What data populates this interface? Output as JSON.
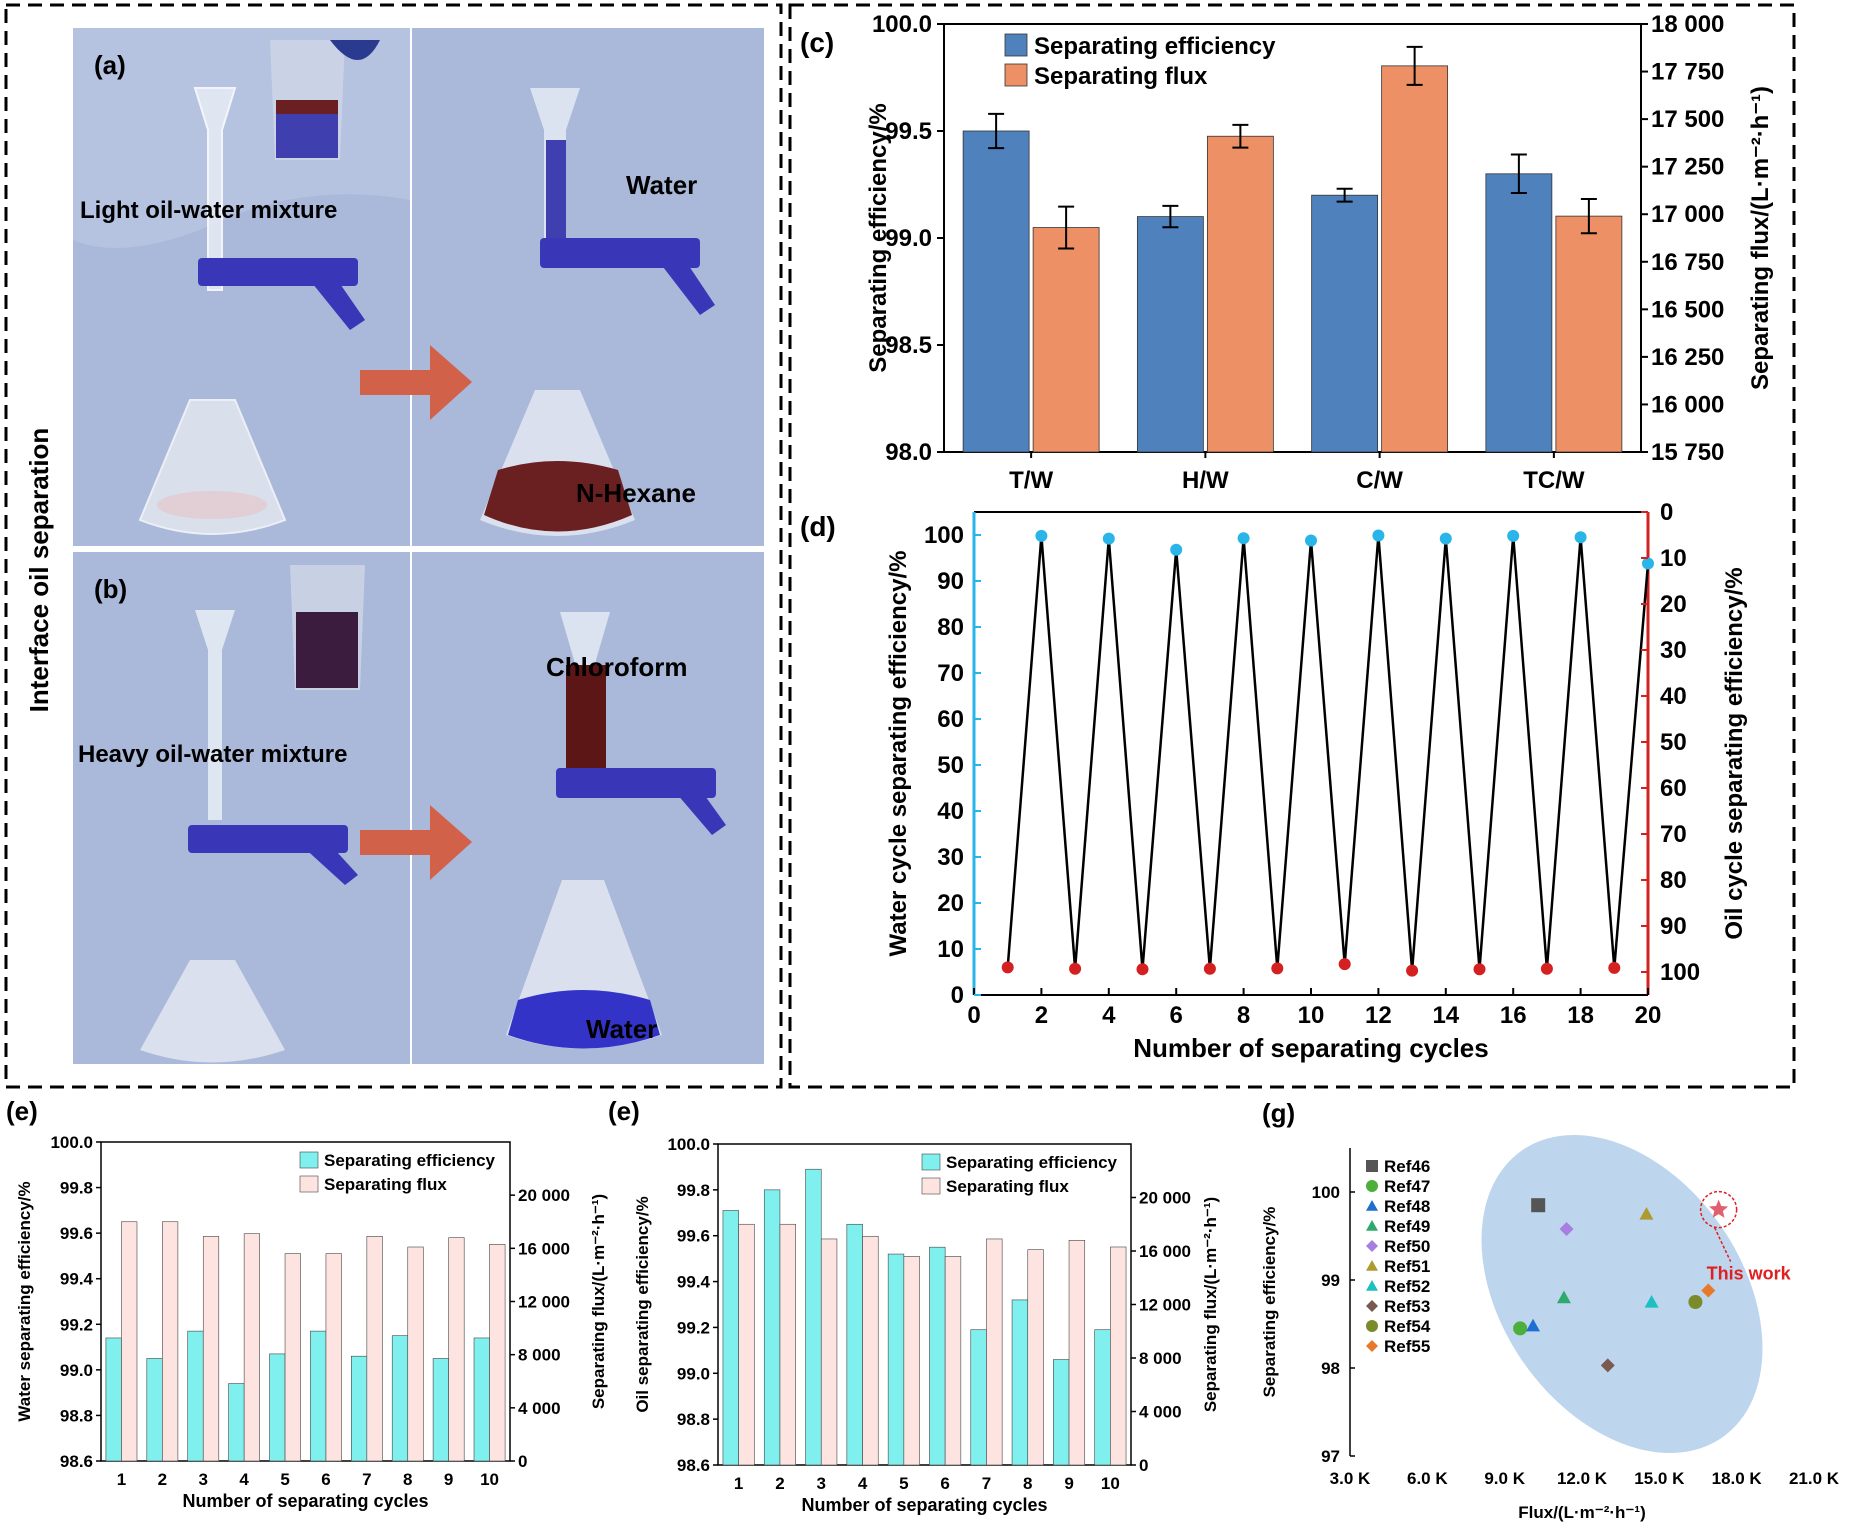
{
  "photos": {
    "side_label": "Interface oil separation",
    "panel_a": {
      "label": "(a)",
      "left_caption": "Light oil-water mixture",
      "right_top": "Water",
      "right_bottom": "N-Hexane"
    },
    "panel_b": {
      "label": "(b)",
      "left_caption": "Heavy oil-water mixture",
      "right_top": "Chloroform",
      "right_bottom": "Water"
    },
    "colors": {
      "background": "#a9b7d8",
      "arrow": "#d2614a",
      "clamp": "#3a36b8",
      "dye_blue": "#3f3fb0",
      "dye_red": "#6a2020"
    }
  },
  "chart_data": [
    {
      "id": "c",
      "panel_label": "(c)",
      "type": "bar",
      "categories": [
        "T/W",
        "H/W",
        "C/W",
        "TC/W"
      ],
      "series": [
        {
          "name": "Separating efficiency",
          "axis": "left",
          "values": [
            99.5,
            99.1,
            99.2,
            99.3
          ],
          "errors": [
            0.08,
            0.05,
            0.03,
            0.09
          ],
          "color": "#4f81bd"
        },
        {
          "name": "Separating flux",
          "axis": "right",
          "values": [
            16930,
            17410,
            17780,
            16990
          ],
          "errors": [
            110,
            60,
            100,
            90
          ],
          "color": "#ed9066"
        }
      ],
      "ylabel": "Separating efficiency/%",
      "y2label": "Separating flux/(L·m⁻²·h⁻¹)",
      "ylim": [
        98.0,
        100.0
      ],
      "y2lim": [
        15750,
        18000
      ],
      "yticks": [
        "98.0",
        "98.5",
        "99.0",
        "99.5",
        "100.0"
      ],
      "y2ticks": [
        "15 750",
        "16 000",
        "16 250",
        "16 500",
        "16 750",
        "17 000",
        "17 250",
        "17 500",
        "17 750",
        "18 000"
      ],
      "legend": "top-left"
    },
    {
      "id": "d",
      "panel_label": "(d)",
      "type": "line",
      "x": [
        1,
        2,
        3,
        4,
        5,
        6,
        7,
        8,
        9,
        10,
        11,
        12,
        13,
        14,
        15,
        16,
        17,
        18,
        19,
        20
      ],
      "series": [
        {
          "name": "",
          "axis": "left",
          "x": [
            2,
            4,
            6,
            8,
            10,
            12,
            14,
            16,
            18,
            20
          ],
          "values": [
            99.8,
            99.2,
            96.8,
            99.3,
            98.8,
            99.9,
            99.2,
            99.8,
            99.5,
            93.8
          ],
          "color": "#29b5e8"
        },
        {
          "name": "",
          "axis": "right",
          "x": [
            1,
            3,
            5,
            7,
            9,
            11,
            13,
            15,
            17,
            19
          ],
          "values": [
            99.0,
            99.3,
            99.4,
            99.3,
            99.2,
            98.3,
            99.7,
            99.4,
            99.3,
            99.1
          ],
          "color": "#d42020"
        }
      ],
      "xlabel": "Number of separating cycles",
      "ylabel": "Water cycle separating efficiency/%",
      "y2label": "Oil cycle separating efficiency/%",
      "xlim": [
        0,
        20
      ],
      "ylim": [
        0,
        105
      ],
      "y2lim": [
        0,
        105
      ],
      "y2_inverted": true,
      "xticks": [
        "0",
        "2",
        "4",
        "6",
        "8",
        "10",
        "12",
        "14",
        "16",
        "18",
        "20"
      ],
      "yticks": [
        "0",
        "10",
        "20",
        "30",
        "40",
        "50",
        "60",
        "70",
        "80",
        "90",
        "100"
      ],
      "y2ticks": [
        "0",
        "10",
        "20",
        "30",
        "40",
        "50",
        "60",
        "70",
        "80",
        "90",
        "100"
      ],
      "left_axis_color": "#29b5e8",
      "right_axis_color": "#d42020"
    },
    {
      "id": "e1",
      "panel_label": "(e)",
      "type": "bar",
      "categories": [
        "1",
        "2",
        "3",
        "4",
        "5",
        "6",
        "7",
        "8",
        "9",
        "10"
      ],
      "series": [
        {
          "name": "Separating efficiency",
          "axis": "left",
          "values": [
            99.14,
            99.05,
            99.17,
            98.94,
            99.07,
            99.17,
            99.06,
            99.15,
            99.05,
            99.14
          ],
          "color": "#7ff0ee"
        },
        {
          "name": "Separating flux",
          "axis": "right",
          "values": [
            18000,
            18000,
            16900,
            17100,
            15600,
            15600,
            16900,
            16100,
            16800,
            16300
          ],
          "color": "#fde4e0"
        }
      ],
      "xlabel": "Number of separating cycles",
      "ylabel": "Water separating efficiency/%",
      "y2label": "Separating flux/(L·m⁻²·h⁻¹)",
      "ylim": [
        98.6,
        100.0
      ],
      "y2lim": [
        0,
        24000
      ],
      "yticks": [
        "98.6",
        "98.8",
        "99.0",
        "99.2",
        "99.4",
        "99.6",
        "99.8",
        "100.0"
      ],
      "y2ticks": [
        "0",
        "4 000",
        "8 000",
        "12 000",
        "16 000",
        "20 000"
      ],
      "legend": "top-right"
    },
    {
      "id": "e2",
      "panel_label": "(e)",
      "type": "bar",
      "categories": [
        "1",
        "2",
        "3",
        "4",
        "5",
        "6",
        "7",
        "8",
        "9",
        "10"
      ],
      "series": [
        {
          "name": "Separating efficiency",
          "axis": "left",
          "values": [
            99.71,
            99.8,
            99.89,
            99.65,
            99.52,
            99.55,
            99.19,
            99.32,
            99.06,
            99.19
          ],
          "color": "#7ff0ee"
        },
        {
          "name": "Separating flux",
          "axis": "right",
          "values": [
            18000,
            18000,
            16900,
            17100,
            15600,
            15600,
            16900,
            16100,
            16800,
            16300
          ],
          "color": "#fde4e0"
        }
      ],
      "xlabel": "Number of separating cycles",
      "ylabel": "Oil separating efficiency/%",
      "y2label": "Separating flux/(L·m⁻²·h⁻¹)",
      "ylim": [
        98.6,
        100.0
      ],
      "y2lim": [
        0,
        24000
      ],
      "yticks": [
        "98.6",
        "98.8",
        "99.0",
        "99.2",
        "99.4",
        "99.6",
        "99.8",
        "100.0"
      ],
      "y2ticks": [
        "0",
        "4 000",
        "8 000",
        "12 000",
        "16 000",
        "20 000"
      ],
      "legend": "top-right"
    },
    {
      "id": "g",
      "panel_label": "(g)",
      "type": "scatter",
      "xlabel": "Flux/(L·m⁻²·h⁻¹)",
      "ylabel": "Separating efficiency/%",
      "xlim": [
        3000,
        21000
      ],
      "ylim": [
        97,
        100.5
      ],
      "xticks": [
        "3.0 K",
        "6.0 K",
        "9.0 K",
        "12.0 K",
        "15.0 K",
        "18.0 K",
        "21.0 K"
      ],
      "yticks": [
        "97",
        "98",
        "99",
        "100"
      ],
      "series": [
        {
          "name": "Ref46",
          "marker": "square",
          "color": "#555555",
          "points": [
            [
              10300,
              99.85
            ]
          ]
        },
        {
          "name": "Ref47",
          "marker": "circle",
          "color": "#4caf3a",
          "points": [
            [
              9600,
              98.45
            ]
          ]
        },
        {
          "name": "Ref48",
          "marker": "triangle",
          "color": "#1f6fd0",
          "points": [
            [
              10100,
              98.48
            ]
          ]
        },
        {
          "name": "Ref49",
          "marker": "triangle",
          "color": "#2eaa6e",
          "points": [
            [
              11300,
              98.8
            ]
          ]
        },
        {
          "name": "Ref50",
          "marker": "diamond",
          "color": "#a77fe0",
          "points": [
            [
              11400,
              99.58
            ]
          ]
        },
        {
          "name": "Ref51",
          "marker": "triangle",
          "color": "#b09a30",
          "points": [
            [
              14500,
              99.75
            ]
          ]
        },
        {
          "name": "Ref52",
          "marker": "triangle",
          "color": "#1cc0c0",
          "points": [
            [
              14700,
              98.75
            ]
          ]
        },
        {
          "name": "Ref53",
          "marker": "diamond",
          "color": "#7a5a50",
          "points": [
            [
              13000,
              98.03
            ]
          ]
        },
        {
          "name": "Ref54",
          "marker": "circle",
          "color": "#7b8b2a",
          "points": [
            [
              16400,
              98.75
            ]
          ]
        },
        {
          "name": "Ref55",
          "marker": "diamond",
          "color": "#e8782a",
          "points": [
            [
              16900,
              98.88
            ]
          ]
        },
        {
          "name": "This work",
          "marker": "star",
          "color": "#e06070",
          "points": [
            [
              17300,
              99.8
            ]
          ]
        }
      ],
      "highlight_color": "#e02020",
      "region_color": "#b9d3ec",
      "legend": "left"
    }
  ]
}
